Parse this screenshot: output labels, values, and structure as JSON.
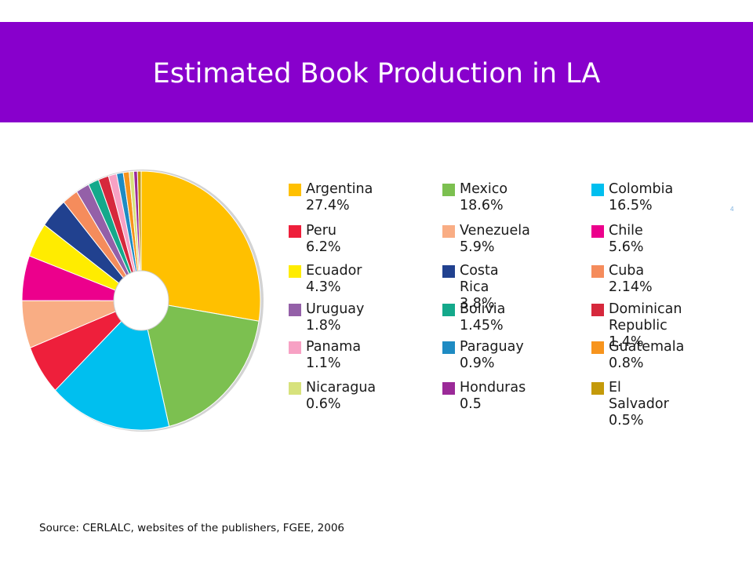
{
  "header": {
    "title": "Estimated Book Production in LA",
    "color": "#8800cc"
  },
  "source": "Source: CERLALC, websites of the publishers, FGEE, 2006",
  "stray_mark": "4",
  "chart_data": {
    "type": "pie",
    "donut": true,
    "title": "",
    "legend_placement": "right",
    "slices": [
      {
        "name": "Argentina",
        "value": 27.4,
        "label": "Argentina 27.4%",
        "color": "#ffc000"
      },
      {
        "name": "Mexico",
        "value": 18.6,
        "label": "Mexico 18.6%",
        "color": "#7cc050"
      },
      {
        "name": "Colombia",
        "value": 16.5,
        "label": "Colombia 16.5%",
        "color": "#00bfef"
      },
      {
        "name": "Peru",
        "value": 6.2,
        "label": "Peru 6.2%",
        "color": "#ee1f3b"
      },
      {
        "name": "Venezuela",
        "value": 5.9,
        "label": "Venezuela 5.9%",
        "color": "#f9ad84"
      },
      {
        "name": "Chile",
        "value": 5.6,
        "label": "Chile 5.6%",
        "color": "#ec008c"
      },
      {
        "name": "Ecuador",
        "value": 4.3,
        "label": "Ecuador 4.3%",
        "color": "#ffec00"
      },
      {
        "name": "Costa Rica",
        "value": 3.8,
        "label": "Costa Rica 3.8%",
        "color": "#21418f"
      },
      {
        "name": "Cuba",
        "value": 2.14,
        "label": "Cuba 2.14%",
        "color": "#f58c5c"
      },
      {
        "name": "Uruguay",
        "value": 1.8,
        "label": "Uruguay 1.8%",
        "color": "#9460a8"
      },
      {
        "name": "Bolivia",
        "value": 1.45,
        "label": "Bolivia 1.45%",
        "color": "#14a98b"
      },
      {
        "name": "Dominican Republic",
        "value": 1.4,
        "label": "Dominican\nRepublic 1.4%",
        "color": "#d6283c"
      },
      {
        "name": "Panama",
        "value": 1.1,
        "label": "Panama 1.1%",
        "color": "#f7a1c4"
      },
      {
        "name": "Paraguay",
        "value": 0.9,
        "label": "Paraguay 0.9%",
        "color": "#1e8bc3"
      },
      {
        "name": "Guatemala",
        "value": 0.8,
        "label": "Guatemala 0.8%",
        "color": "#f7941d"
      },
      {
        "name": "Nicaragua",
        "value": 0.6,
        "label": "Nicaragua 0.6%",
        "color": "#d7e27c"
      },
      {
        "name": "Honduras",
        "value": 0.5,
        "label": "Honduras 0.5",
        "color": "#9b2a98"
      },
      {
        "name": "El Salvador",
        "value": 0.5,
        "label": "El Salvador 0.5%",
        "color": "#c49a0a"
      }
    ]
  }
}
